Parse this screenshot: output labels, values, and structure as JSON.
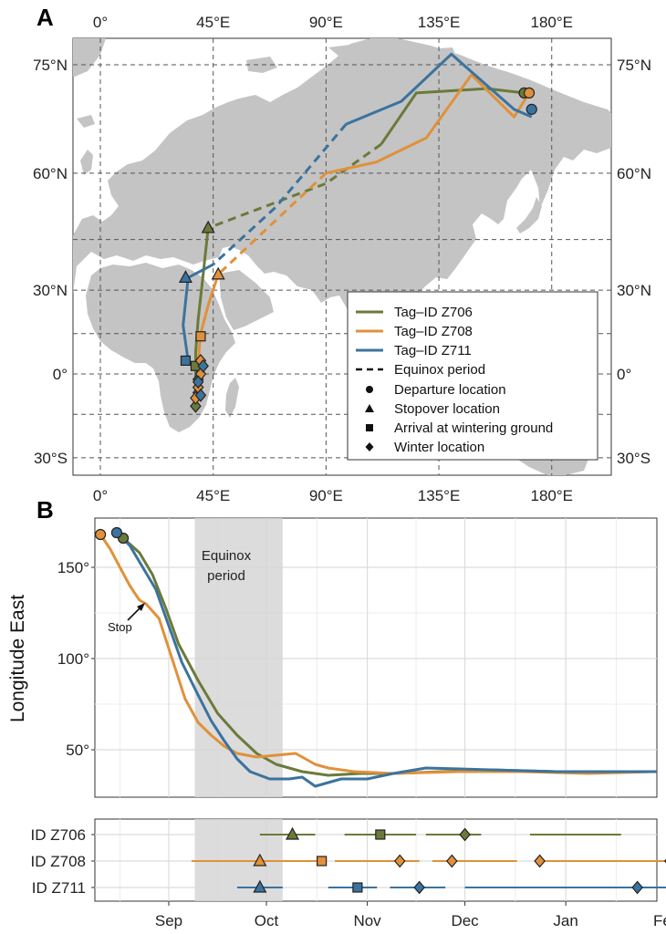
{
  "panel_a": {
    "letter": "A",
    "lon_ticks": [
      "0°",
      "45°E",
      "90°E",
      "135°E",
      "180°E"
    ],
    "lat_ticks_left": [
      "75°N",
      "60°N",
      "30°N",
      "0°",
      "30°S"
    ],
    "lat_ticks_right": [
      "75°N",
      "60°N",
      "30°N",
      "0°",
      "30°S"
    ]
  },
  "legend": {
    "series": [
      {
        "name": "Tag–ID Z706",
        "color": "#6b7a3a"
      },
      {
        "name": "Tag–ID Z708",
        "color": "#e0913b"
      },
      {
        "name": "Tag–ID Z711",
        "color": "#3b739e"
      }
    ],
    "line_style": "Equinox period",
    "markers": [
      "Departure location",
      "Stopover location",
      "Arrival at wintering ground",
      "Winter location"
    ],
    "marker_icons": [
      "circle-icon",
      "triangle-icon",
      "square-icon",
      "diamond-icon"
    ]
  },
  "panel_b": {
    "letter": "B",
    "ylabel": "Longitude East",
    "yticks": [
      "150°",
      "100°",
      "50°"
    ],
    "months": [
      "Sep",
      "Oct",
      "Nov",
      "Dec",
      "Jan",
      "Feb"
    ],
    "equinox_label": [
      "Equinox",
      "period"
    ],
    "stop_label": "Stop",
    "row_labels": [
      "ID Z706",
      "ID Z708",
      "ID Z711"
    ]
  },
  "chart_data": [
    {
      "type": "line",
      "panel": "A",
      "subtype": "map-tracks",
      "x_axis": "longitude (degrees East)",
      "y_axis": "latitude (degrees North)",
      "xlim": [
        -15,
        190
      ],
      "ylim": [
        -35,
        80
      ],
      "series": [
        {
          "name": "Tag–ID Z706",
          "color": "#6b7a3a",
          "lon": [
            169,
            154,
            126,
            112,
            90,
            43,
            41,
            39,
            38,
            38
          ],
          "lat": [
            72,
            72.5,
            72,
            65,
            58,
            48,
            35,
            20,
            8,
            -12
          ],
          "equinox_segment": [
            3,
            5
          ],
          "departure": [
            169,
            72
          ],
          "stopover": [
            43,
            48
          ],
          "arrival": [
            38,
            3
          ],
          "winter": [
            [
              39,
              -2
            ],
            [
              39,
              -7
            ],
            [
              38,
              -12
            ]
          ]
        },
        {
          "name": "Tag–ID Z708",
          "color": "#e0913b",
          "lon": [
            171,
            165,
            148,
            130,
            110,
            90,
            47,
            43,
            40,
            39,
            38
          ],
          "lat": [
            72,
            69,
            74,
            66,
            62,
            60,
            35,
            25,
            15,
            5,
            -10
          ],
          "equinox_segment": [
            5,
            6
          ],
          "departure": [
            171,
            72
          ],
          "stopover": [
            47,
            35
          ],
          "arrival": [
            40,
            14
          ],
          "winter": [
            [
              40,
              5
            ],
            [
              40,
              0
            ],
            [
              39,
              -5
            ],
            [
              38,
              -9
            ]
          ]
        },
        {
          "name": "Tag–ID Z711",
          "color": "#3b739e",
          "lon": [
            172,
            165,
            140,
            120,
            98,
            70,
            45,
            35,
            33,
            35,
            39,
            40
          ],
          "lat": [
            69,
            70,
            76,
            71,
            68,
            53,
            38,
            34,
            18,
            5,
            0,
            -8
          ],
          "equinox_segment": [
            4,
            6
          ],
          "departure": [
            172,
            70
          ],
          "stopover": [
            34,
            34
          ],
          "arrival": [
            34,
            5
          ],
          "winter": [
            [
              41,
              3
            ],
            [
              39,
              -3
            ],
            [
              40,
              -8
            ]
          ]
        }
      ]
    },
    {
      "type": "line",
      "panel": "B",
      "ylabel": "Longitude East",
      "x_unit": "days since 1 Aug",
      "xlim": [
        10,
        200
      ],
      "ylim": [
        20,
        175
      ],
      "equinox_span": [
        39,
        66
      ],
      "series": [
        {
          "name": "Tag–ID Z706",
          "color": "#6b7a3a",
          "x": [
            17,
            22,
            26,
            30,
            34,
            40,
            46,
            52,
            58,
            64,
            72,
            80,
            90,
            100,
            115,
            130,
            150,
            170,
            187
          ],
          "y": [
            166,
            158,
            146,
            128,
            108,
            88,
            70,
            58,
            48,
            42,
            38,
            36,
            37,
            37,
            38,
            39,
            38,
            38,
            38
          ]
        },
        {
          "name": "Tag–ID Z708",
          "color": "#e0913b",
          "x": [
            10,
            13,
            16,
            19,
            22,
            24,
            28,
            32,
            36,
            40,
            44,
            48,
            52,
            58,
            64,
            70,
            76,
            80,
            88,
            100,
            120,
            140,
            160,
            180,
            200
          ],
          "y": [
            168,
            160,
            150,
            140,
            132,
            130,
            122,
            100,
            78,
            65,
            58,
            52,
            48,
            46,
            47,
            48,
            42,
            40,
            38,
            37,
            38,
            38,
            37,
            38,
            38
          ]
        },
        {
          "name": "Tag–ID Z711",
          "color": "#3b739e",
          "x": [
            15,
            19,
            23,
            27,
            31,
            35,
            40,
            44,
            48,
            52,
            56,
            62,
            68,
            72,
            76,
            84,
            92,
            100,
            110,
            130,
            150,
            170,
            185
          ],
          "y": [
            169,
            162,
            150,
            138,
            118,
            98,
            80,
            66,
            55,
            45,
            38,
            34,
            34,
            35,
            30,
            34,
            34,
            37,
            40,
            39,
            38,
            38,
            38
          ]
        }
      ],
      "departures": [
        [
          17,
          166
        ],
        [
          10,
          168
        ],
        [
          15,
          169
        ]
      ]
    },
    {
      "type": "timeline",
      "panel": "B-lower",
      "x_unit": "days since 1 Aug",
      "rows": [
        {
          "label": "ID Z706",
          "color": "#6b7a3a",
          "segments": [
            [
              59,
              76
            ],
            [
              85,
              107
            ],
            [
              110,
              127
            ],
            [
              142,
              170
            ]
          ],
          "stopover": 69,
          "arrival": 96,
          "winter": [
            122,
            188
          ]
        },
        {
          "label": "ID Z708",
          "color": "#e0913b",
          "segments": [
            [
              38,
              78
            ],
            [
              82,
              108
            ],
            [
              112,
              138
            ],
            [
              145,
              202
            ]
          ],
          "stopover": 59,
          "arrival": 78,
          "winter": [
            [
              102,
              118,
              145
            ],
            185
          ]
        },
        {
          "label": "ID Z711",
          "color": "#3b739e",
          "segments": [
            [
              52,
              66
            ],
            [
              80,
              95
            ],
            [
              99,
              116
            ],
            [
              122,
              187
            ]
          ],
          "stopover": 59,
          "arrival": 89,
          "winter": [
            108,
            175
          ]
        }
      ]
    }
  ]
}
